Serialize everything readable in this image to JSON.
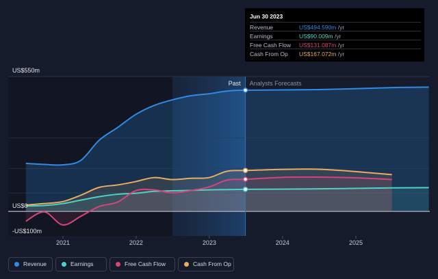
{
  "chart_data": {
    "type": "area",
    "x_label_ticks": [
      "2021",
      "2022",
      "2023",
      "2024",
      "2025"
    ],
    "y_labels": {
      "top": "US$550m",
      "zero": "US$0",
      "bottom": "-US$100m"
    },
    "ylim": [
      -100,
      550
    ],
    "segments": {
      "past": "Past",
      "forecast": "Analysts Forecasts"
    },
    "divider_date": "2023-06-30",
    "series": [
      {
        "name": "Revenue",
        "color": "#2f8be6",
        "points": [
          [
            "2020-06-30",
            196
          ],
          [
            "2020-09-30",
            192
          ],
          [
            "2020-12-31",
            190
          ],
          [
            "2021-03-31",
            208
          ],
          [
            "2021-06-30",
            290
          ],
          [
            "2021-09-30",
            342
          ],
          [
            "2021-12-31",
            396
          ],
          [
            "2022-03-31",
            432
          ],
          [
            "2022-06-30",
            455
          ],
          [
            "2022-09-30",
            472
          ],
          [
            "2022-12-31",
            480
          ],
          [
            "2023-03-31",
            491
          ],
          [
            "2023-06-30",
            494.59
          ],
          [
            "2024-06-30",
            497
          ],
          [
            "2025-06-30",
            505
          ],
          [
            "2025-12-31",
            507
          ]
        ]
      },
      {
        "name": "Earnings",
        "color": "#4fd2c4",
        "points": [
          [
            "2020-06-30",
            22
          ],
          [
            "2020-09-30",
            24
          ],
          [
            "2020-12-31",
            32
          ],
          [
            "2021-03-31",
            46
          ],
          [
            "2021-06-30",
            60
          ],
          [
            "2021-09-30",
            70
          ],
          [
            "2021-12-31",
            74
          ],
          [
            "2022-03-31",
            82
          ],
          [
            "2022-06-30",
            84
          ],
          [
            "2022-09-30",
            86
          ],
          [
            "2022-12-31",
            88
          ],
          [
            "2023-03-31",
            89
          ],
          [
            "2023-06-30",
            90.009
          ],
          [
            "2024-06-30",
            92
          ],
          [
            "2025-06-30",
            96
          ],
          [
            "2025-12-31",
            97
          ]
        ]
      },
      {
        "name": "Free Cash Flow",
        "color": "#d6447a",
        "points": [
          [
            "2020-06-30",
            -40
          ],
          [
            "2020-09-30",
            -2
          ],
          [
            "2020-12-31",
            -55
          ],
          [
            "2021-03-31",
            -20
          ],
          [
            "2021-06-30",
            20
          ],
          [
            "2021-09-30",
            38
          ],
          [
            "2021-12-31",
            85
          ],
          [
            "2022-03-31",
            88
          ],
          [
            "2022-06-30",
            76
          ],
          [
            "2022-09-30",
            85
          ],
          [
            "2022-12-31",
            100
          ],
          [
            "2023-03-31",
            128
          ],
          [
            "2023-06-30",
            131.087
          ],
          [
            "2023-12-31",
            139
          ],
          [
            "2024-06-30",
            140
          ],
          [
            "2024-12-31",
            137
          ],
          [
            "2025-06-30",
            130
          ]
        ]
      },
      {
        "name": "Cash From Op",
        "color": "#e8ad5e",
        "points": [
          [
            "2020-06-30",
            26
          ],
          [
            "2020-09-30",
            32
          ],
          [
            "2020-12-31",
            40
          ],
          [
            "2021-03-31",
            66
          ],
          [
            "2021-06-30",
            98
          ],
          [
            "2021-09-30",
            108
          ],
          [
            "2021-12-31",
            122
          ],
          [
            "2022-03-31",
            138
          ],
          [
            "2022-06-30",
            130
          ],
          [
            "2022-09-30",
            135
          ],
          [
            "2022-12-31",
            138
          ],
          [
            "2023-03-31",
            164
          ],
          [
            "2023-06-30",
            167.072
          ],
          [
            "2024-06-30",
            172
          ],
          [
            "2025-06-30",
            150
          ]
        ]
      }
    ]
  },
  "tooltip": {
    "date": "Jun 30 2023",
    "rows": [
      {
        "name": "Revenue",
        "value": "US$494.590m",
        "unit": "/yr",
        "color": "#2f8be6"
      },
      {
        "name": "Earnings",
        "value": "US$90.009m",
        "unit": "/yr",
        "color": "#4fd2c4"
      },
      {
        "name": "Free Cash Flow",
        "value": "US$131.087m",
        "unit": "/yr",
        "color": "#d6447a"
      },
      {
        "name": "Cash From Op",
        "value": "US$167.072m",
        "unit": "/yr",
        "color": "#e8ad5e"
      }
    ]
  },
  "legend": [
    {
      "label": "Revenue",
      "color": "#2f8be6"
    },
    {
      "label": "Earnings",
      "color": "#4fd2c4"
    },
    {
      "label": "Free Cash Flow",
      "color": "#d6447a"
    },
    {
      "label": "Cash From Op",
      "color": "#e8ad5e"
    }
  ]
}
